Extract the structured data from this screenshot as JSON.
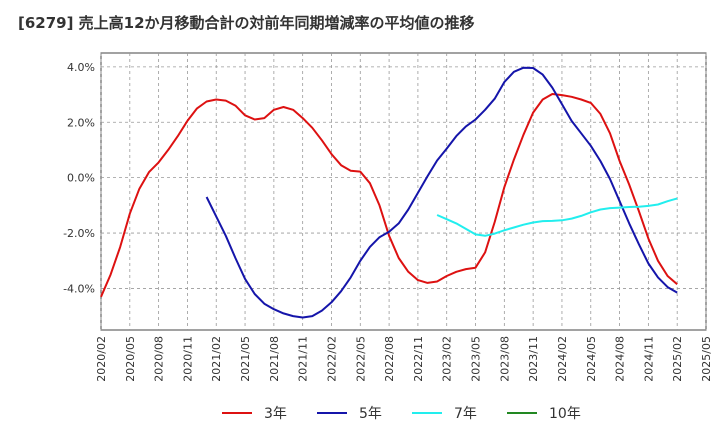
{
  "title": "[6279]  売上高12か月移動合計の対前年同期増減率の平均値の推移",
  "chart_data": {
    "type": "line",
    "title": "[6279]  売上高12か月移動合計の対前年同期増減率の平均値の推移",
    "xlabel": "",
    "ylabel": "",
    "ylim": [
      -5.5,
      4.5
    ],
    "yticks": [
      4.0,
      2.0,
      0.0,
      -2.0,
      -4.0
    ],
    "ytick_labels": [
      "4.0%",
      "2.0%",
      "0.0%",
      "-2.0%",
      "-4.0%"
    ],
    "xlim": [
      "2020-02",
      "2025-05"
    ],
    "xtick_labels": [
      "2020/02",
      "2020/05",
      "2020/08",
      "2020/11",
      "2021/02",
      "2021/05",
      "2021/08",
      "2021/11",
      "2022/02",
      "2022/05",
      "2022/08",
      "2022/11",
      "2023/02",
      "2023/05",
      "2023/08",
      "2023/11",
      "2024/02",
      "2024/05",
      "2024/08",
      "2024/11",
      "2025/02",
      "2025/05"
    ],
    "grid": true,
    "legend_position": "bottom",
    "series": [
      {
        "name": "3年",
        "color": "#dd1111",
        "start": "2020-02",
        "values": [
          -4.3,
          -3.5,
          -2.5,
          -1.3,
          -0.4,
          0.2,
          0.55,
          1.0,
          1.5,
          2.05,
          2.5,
          2.75,
          2.82,
          2.78,
          2.6,
          2.25,
          2.1,
          2.15,
          2.45,
          2.55,
          2.45,
          2.15,
          1.8,
          1.35,
          0.85,
          0.45,
          0.25,
          0.22,
          -0.2,
          -1.0,
          -2.1,
          -2.9,
          -3.4,
          -3.7,
          -3.8,
          -3.75,
          -3.55,
          -3.4,
          -3.3,
          -3.25,
          -2.7,
          -1.6,
          -0.35,
          0.65,
          1.55,
          2.35,
          2.82,
          3.02,
          2.98,
          2.92,
          2.82,
          2.7,
          2.3,
          1.6,
          0.6,
          -0.25,
          -1.2,
          -2.2,
          -3.0,
          -3.55,
          -3.85
        ]
      },
      {
        "name": "5年",
        "color": "#1515aa",
        "start": "2021-01",
        "values": [
          -0.7,
          -1.4,
          -2.1,
          -2.9,
          -3.65,
          -4.2,
          -4.55,
          -4.75,
          -4.9,
          -5.0,
          -5.05,
          -5.0,
          -4.8,
          -4.5,
          -4.1,
          -3.6,
          -3.0,
          -2.5,
          -2.15,
          -1.95,
          -1.65,
          -1.15,
          -0.55,
          0.05,
          0.62,
          1.05,
          1.5,
          1.85,
          2.1,
          2.45,
          2.85,
          3.45,
          3.82,
          3.97,
          3.96,
          3.72,
          3.25,
          2.65,
          2.05,
          1.6,
          1.15,
          0.6,
          -0.05,
          -0.85,
          -1.65,
          -2.4,
          -3.1,
          -3.6,
          -3.95,
          -4.15
        ]
      },
      {
        "name": "7年",
        "color": "#22eeee",
        "start": "2023-01",
        "values": [
          -1.35,
          -1.5,
          -1.65,
          -1.85,
          -2.05,
          -2.1,
          -2.02,
          -1.9,
          -1.8,
          -1.7,
          -1.62,
          -1.57,
          -1.56,
          -1.54,
          -1.48,
          -1.38,
          -1.25,
          -1.15,
          -1.1,
          -1.08,
          -1.06,
          -1.05,
          -1.02,
          -0.97,
          -0.85,
          -0.75
        ]
      },
      {
        "name": "10年",
        "color": "#228822",
        "start": "2025-02",
        "values": []
      }
    ]
  }
}
